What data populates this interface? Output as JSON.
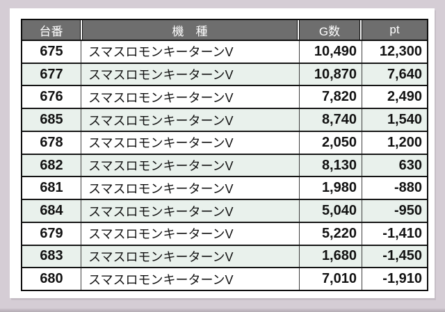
{
  "table": {
    "headers": {
      "dai": "台番",
      "kishu": "機　種",
      "g": "G数",
      "pt": "pt"
    },
    "rows": [
      {
        "dai": "675",
        "kishu": "スマスロモンキーターンV",
        "g": "10,490",
        "pt": "12,300"
      },
      {
        "dai": "677",
        "kishu": "スマスロモンキーターンV",
        "g": "10,870",
        "pt": "7,640"
      },
      {
        "dai": "676",
        "kishu": "スマスロモンキーターンV",
        "g": "7,820",
        "pt": "2,490"
      },
      {
        "dai": "685",
        "kishu": "スマスロモンキーターンV",
        "g": "8,740",
        "pt": "1,540"
      },
      {
        "dai": "678",
        "kishu": "スマスロモンキーターンV",
        "g": "2,050",
        "pt": "1,200"
      },
      {
        "dai": "682",
        "kishu": "スマスロモンキーターンV",
        "g": "8,130",
        "pt": "630"
      },
      {
        "dai": "681",
        "kishu": "スマスロモンキーターンV",
        "g": "1,980",
        "pt": "-880"
      },
      {
        "dai": "684",
        "kishu": "スマスロモンキーターンV",
        "g": "5,040",
        "pt": "-950"
      },
      {
        "dai": "679",
        "kishu": "スマスロモンキーターンV",
        "g": "5,220",
        "pt": "-1,410"
      },
      {
        "dai": "683",
        "kishu": "スマスロモンキーターンV",
        "g": "1,680",
        "pt": "-1,450"
      },
      {
        "dai": "680",
        "kishu": "スマスロモンキーターンV",
        "g": "7,010",
        "pt": "-1,910"
      }
    ]
  },
  "colors": {
    "background": "#d5cdd5",
    "panel": "#ffffff",
    "header_bg": "#6e6e6e",
    "header_text": "#ffffff",
    "alt_row_bg": "#e9f1ec",
    "text": "#121212"
  }
}
